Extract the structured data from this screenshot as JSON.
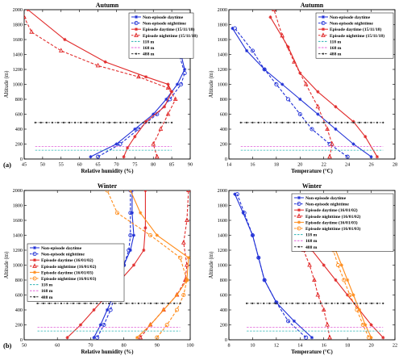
{
  "figure": {
    "labels": [
      "(a)",
      "(b)"
    ]
  },
  "chart_data": [
    {
      "type": "line",
      "title": "Autumn",
      "xlabel": "Relative humidity (%)",
      "ylabel": "Altitude (m)",
      "xlim": [
        45,
        90
      ],
      "ylim": [
        0,
        2000
      ],
      "xticks": [
        45,
        50,
        55,
        60,
        65,
        70,
        75,
        80,
        85,
        90
      ],
      "yticks": [
        0,
        200,
        400,
        600,
        800,
        1000,
        1200,
        1400,
        1600,
        1800,
        2000
      ],
      "legend_position": "top-right",
      "series": [
        {
          "name": "Non-episode daytime",
          "color": "#1f2fd6",
          "dash": "solid",
          "marker": "star",
          "x": [
            63,
            70,
            75,
            80,
            83.5,
            86.5,
            88.5,
            87.5,
            85.5,
            82
          ],
          "y": [
            30,
            200,
            400,
            600,
            800,
            1000,
            1200,
            1400,
            1600,
            1850
          ]
        },
        {
          "name": "Non-episode nighttime",
          "color": "#1f2fd6",
          "dash": "dashed",
          "marker": "circle",
          "x": [
            65,
            71,
            76,
            81,
            84.5,
            87.5,
            88.5,
            87,
            85,
            83.5
          ],
          "y": [
            30,
            200,
            400,
            600,
            800,
            1000,
            1150,
            1400,
            1650,
            1900
          ]
        },
        {
          "name": "Episode daytime (15/11/18)",
          "color": "#e12b2b",
          "dash": "solid",
          "marker": "star",
          "x": [
            72,
            73,
            75,
            78,
            83,
            85,
            84,
            78,
            67,
            56,
            46
          ],
          "y": [
            30,
            150,
            300,
            500,
            700,
            900,
            1000,
            1100,
            1300,
            1600,
            2000
          ]
        },
        {
          "name": "Episode nighttime (15/11/18)",
          "color": "#e12b2b",
          "dash": "dashed",
          "marker": "triangle",
          "x": [
            81,
            80,
            82,
            84,
            86,
            84,
            76,
            65,
            55,
            47,
            45
          ],
          "y": [
            30,
            200,
            400,
            600,
            800,
            950,
            1100,
            1250,
            1450,
            1700,
            1900
          ]
        },
        {
          "name": "118 m",
          "color": "#2bb3b3",
          "dash": "dashed",
          "marker": "none",
          "x": [
            48,
            85
          ],
          "y": [
            118,
            118
          ]
        },
        {
          "name": "168 m",
          "color": "#e060d8",
          "dash": "dashed",
          "marker": "none",
          "x": [
            48,
            85
          ],
          "y": [
            168,
            168
          ]
        },
        {
          "name": "488 m",
          "color": "#333333",
          "dash": "dashed",
          "marker": "point",
          "x": [
            48,
            85
          ],
          "y": [
            488,
            488
          ]
        }
      ]
    },
    {
      "type": "line",
      "title": "Autumn",
      "xlabel": "Temperature (°C)",
      "ylabel": "Altitude (m)",
      "xlim": [
        14,
        28
      ],
      "ylim": [
        0,
        2000
      ],
      "xticks": [
        14,
        16,
        18,
        20,
        22,
        24,
        26,
        28
      ],
      "yticks": [
        0,
        200,
        400,
        600,
        800,
        1000,
        1200,
        1400,
        1600,
        1800,
        2000
      ],
      "legend_position": "top-right",
      "series": [
        {
          "name": "Non-episode daytime",
          "color": "#1f2fd6",
          "dash": "solid",
          "marker": "star",
          "x": [
            26,
            24.5,
            23,
            21.5,
            20,
            18.5,
            17,
            15.5,
            14.3
          ],
          "y": [
            30,
            200,
            400,
            600,
            800,
            1000,
            1200,
            1450,
            1750
          ]
        },
        {
          "name": "Non-episode nighttime",
          "color": "#1f2fd6",
          "dash": "dashed",
          "marker": "circle",
          "x": [
            24,
            22.5,
            21,
            20,
            19,
            18,
            17,
            16,
            14.5
          ],
          "y": [
            30,
            200,
            400,
            600,
            800,
            1000,
            1200,
            1450,
            1750
          ]
        },
        {
          "name": "Episode daytime (15/11/18)",
          "color": "#e12b2b",
          "dash": "solid",
          "marker": "star",
          "x": [
            26.5,
            25.5,
            24.5,
            23,
            21.5,
            20,
            19,
            17.5
          ],
          "y": [
            30,
            300,
            500,
            700,
            900,
            1150,
            1500,
            1900
          ]
        },
        {
          "name": "Episode nighttime (15/11/18)",
          "color": "#e12b2b",
          "dash": "dashed",
          "marker": "triangle",
          "x": [
            22.5,
            22.7,
            22.3,
            21.5,
            20.5,
            19.5,
            18.5,
            17.8
          ],
          "y": [
            30,
            200,
            400,
            700,
            1000,
            1300,
            1650,
            2000
          ]
        },
        {
          "name": "118 m",
          "color": "#2bb3b3",
          "dash": "dashed",
          "marker": "none",
          "x": [
            15,
            27
          ],
          "y": [
            118,
            118
          ]
        },
        {
          "name": "168 m",
          "color": "#e060d8",
          "dash": "dashed",
          "marker": "none",
          "x": [
            15,
            27
          ],
          "y": [
            168,
            168
          ]
        },
        {
          "name": "488 m",
          "color": "#333333",
          "dash": "dashed",
          "marker": "point",
          "x": [
            15,
            27
          ],
          "y": [
            488,
            488
          ]
        }
      ]
    },
    {
      "type": "line",
      "title": "Winter",
      "xlabel": "Relative humidity (%)",
      "ylabel": "Altitude (m)",
      "xlim": [
        50,
        100
      ],
      "ylim": [
        0,
        2000
      ],
      "xticks": [
        50,
        60,
        70,
        80,
        90,
        100
      ],
      "yticks": [
        0,
        200,
        400,
        600,
        800,
        1000,
        1200,
        1400,
        1600,
        1800,
        2000
      ],
      "legend_position": "bottom-left",
      "series": [
        {
          "name": "Non-episode daytime",
          "color": "#1f2fd6",
          "dash": "solid",
          "marker": "star",
          "x": [
            71,
            73,
            75,
            78,
            80,
            82,
            83,
            82.5,
            82.5
          ],
          "y": [
            30,
            200,
            400,
            700,
            1000,
            1200,
            1400,
            1700,
            2000
          ]
        },
        {
          "name": "Non-episode nighttime",
          "color": "#1f2fd6",
          "dash": "dashed",
          "marker": "circle",
          "x": [
            72,
            74,
            76,
            78,
            80,
            81.5,
            82,
            82,
            82
          ],
          "y": [
            30,
            200,
            400,
            700,
            1000,
            1200,
            1400,
            1700,
            2000
          ]
        },
        {
          "name": "Episode daytime (16/01/02)",
          "color": "#e12b2b",
          "dash": "solid",
          "marker": "star",
          "x": [
            63,
            67,
            71,
            75,
            79,
            83,
            86,
            86.5,
            86.5
          ],
          "y": [
            30,
            200,
            400,
            600,
            800,
            1000,
            1200,
            1500,
            2000
          ]
        },
        {
          "name": "Episode nighttime (16/01/02)",
          "color": "#e12b2b",
          "dash": "dashed",
          "marker": "triangle",
          "x": [
            85,
            88,
            92,
            96,
            98.5,
            99,
            98,
            99,
            99.5
          ],
          "y": [
            30,
            200,
            400,
            600,
            800,
            1000,
            1300,
            1600,
            2000
          ]
        },
        {
          "name": "Episode daytime (16/01/03)",
          "color": "#ff8c1a",
          "dash": "solid",
          "marker": "star",
          "x": [
            84,
            88,
            92,
            96,
            99,
            99.5,
            90,
            85,
            82
          ],
          "y": [
            30,
            200,
            400,
            600,
            800,
            1100,
            1400,
            1700,
            2000
          ]
        },
        {
          "name": "Episode nighttime (16/01/03)",
          "color": "#ff8c1a",
          "dash": "dashed",
          "marker": "circle",
          "x": [
            90,
            93,
            96,
            98,
            99,
            97,
            88,
            78,
            75
          ],
          "y": [
            30,
            200,
            400,
            600,
            800,
            1100,
            1400,
            1700,
            2000
          ]
        },
        {
          "name": "118 m",
          "color": "#2bb3b3",
          "dash": "dashed",
          "marker": "none",
          "x": [
            54,
            97
          ],
          "y": [
            118,
            118
          ]
        },
        {
          "name": "168 m",
          "color": "#e060d8",
          "dash": "dashed",
          "marker": "none",
          "x": [
            54,
            97
          ],
          "y": [
            168,
            168
          ]
        },
        {
          "name": "488 m",
          "color": "#333333",
          "dash": "dashed",
          "marker": "point",
          "x": [
            54,
            97
          ],
          "y": [
            488,
            488
          ]
        }
      ]
    },
    {
      "type": "line",
      "title": "Winter",
      "xlabel": "Temperature (°C)",
      "ylabel": "Altitude (m)",
      "xlim": [
        8,
        22
      ],
      "ylim": [
        0,
        2000
      ],
      "xticks": [
        8,
        10,
        12,
        14,
        16,
        18,
        20,
        22
      ],
      "yticks": [
        0,
        200,
        400,
        600,
        800,
        1000,
        1200,
        1400,
        1600,
        1800,
        2000
      ],
      "legend_position": "top-right",
      "series": [
        {
          "name": "Non-episode daytime",
          "color": "#1f2fd6",
          "dash": "solid",
          "marker": "star",
          "x": [
            15,
            13.5,
            12,
            11,
            10.5,
            10,
            9.2,
            8.5
          ],
          "y": [
            30,
            250,
            500,
            800,
            1100,
            1400,
            1700,
            1950
          ]
        },
        {
          "name": "Non-episode nighttime",
          "color": "#1f2fd6",
          "dash": "dashed",
          "marker": "circle",
          "x": [
            14.5,
            13,
            12,
            11,
            10.5,
            10,
            9.3,
            8.7
          ],
          "y": [
            30,
            250,
            500,
            800,
            1100,
            1400,
            1700,
            1950
          ]
        },
        {
          "name": "Episode daytime (16/01/02)",
          "color": "#e12b2b",
          "dash": "solid",
          "marker": "star",
          "x": [
            21,
            20,
            19,
            18,
            17,
            16,
            15,
            14.5,
            14
          ],
          "y": [
            30,
            200,
            400,
            600,
            800,
            1000,
            1200,
            1450,
            1700
          ]
        },
        {
          "name": "Episode nighttime (16/01/02)",
          "color": "#e12b2b",
          "dash": "dashed",
          "marker": "triangle",
          "x": [
            16.5,
            16.3,
            16,
            15.5,
            15.2,
            14.8,
            14.3,
            14.5,
            14.8
          ],
          "y": [
            30,
            200,
            400,
            600,
            800,
            1000,
            1200,
            1450,
            1700
          ]
        },
        {
          "name": "Episode daytime (16/01/03)",
          "color": "#ff8c1a",
          "dash": "solid",
          "marker": "star",
          "x": [
            20,
            19.5,
            19,
            18.5,
            18,
            17.5,
            17,
            16.5,
            16
          ],
          "y": [
            30,
            200,
            400,
            600,
            800,
            1000,
            1200,
            1400,
            1650
          ]
        },
        {
          "name": "Episode nighttime (16/01/03)",
          "color": "#ff8c1a",
          "dash": "dashed",
          "marker": "circle",
          "x": [
            19.8,
            19.3,
            18.8,
            18.2,
            17.7,
            17.2,
            16.8,
            16.3,
            16
          ],
          "y": [
            30,
            200,
            400,
            600,
            800,
            1000,
            1200,
            1400,
            1650
          ]
        },
        {
          "name": "118 m",
          "color": "#2bb3b3",
          "dash": "dashed",
          "marker": "none",
          "x": [
            9.5,
            21
          ],
          "y": [
            118,
            118
          ]
        },
        {
          "name": "168 m",
          "color": "#e060d8",
          "dash": "dashed",
          "marker": "none",
          "x": [
            9.5,
            21
          ],
          "y": [
            168,
            168
          ]
        },
        {
          "name": "488 m",
          "color": "#333333",
          "dash": "dashed",
          "marker": "point",
          "x": [
            9.5,
            21
          ],
          "y": [
            488,
            488
          ]
        }
      ]
    }
  ]
}
